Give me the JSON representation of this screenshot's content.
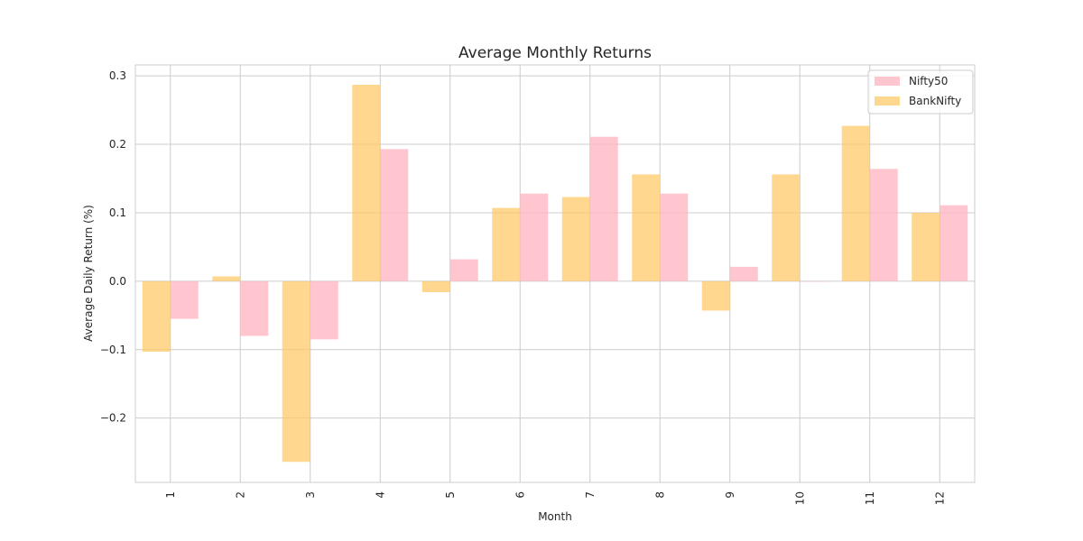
{
  "chart_data": {
    "type": "bar",
    "title": "Average Monthly Returns",
    "xlabel": "Month",
    "ylabel": "Average Daily Return (%)",
    "categories": [
      "1",
      "2",
      "3",
      "4",
      "5",
      "6",
      "7",
      "8",
      "9",
      "10",
      "11",
      "12"
    ],
    "series": [
      {
        "name": "Nifty50",
        "color": "#ffb6c1",
        "values": [
          -0.055,
          -0.08,
          -0.085,
          0.193,
          0.032,
          0.128,
          0.211,
          0.128,
          0.021,
          0.0,
          0.164,
          0.111
        ]
      },
      {
        "name": "BankNifty",
        "color": "#ffc864",
        "values": [
          -0.103,
          0.007,
          -0.264,
          0.287,
          -0.016,
          0.107,
          0.123,
          0.156,
          -0.043,
          0.156,
          0.227,
          0.1
        ]
      }
    ],
    "yticks": [
      -0.2,
      -0.1,
      0.0,
      0.1,
      0.2,
      0.3
    ],
    "ytick_labels": [
      "−0.2",
      "−0.1",
      "0.0",
      "0.1",
      "0.2",
      "0.3"
    ],
    "ylim": [
      -0.294,
      0.316
    ],
    "grid": true,
    "legend_position": "top-right"
  }
}
